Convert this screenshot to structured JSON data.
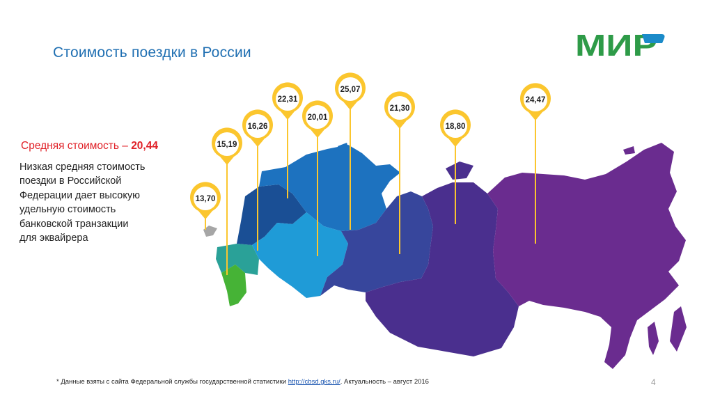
{
  "page": {
    "title": "Стоимость поездки в России",
    "page_number": "4"
  },
  "logo": {
    "text": "МИР",
    "color": "#2e9b48",
    "accent": "#1b8bc9"
  },
  "summary": {
    "label": "Средняя стоимость – ",
    "value": "20,44",
    "description": "Низкая средняя стоимость\nпоездки в Российской\nФедерации дает высокую\nудельную стоимость\nбанковской транзакции\nдля эквайрера"
  },
  "pins": [
    {
      "value": "13,70",
      "color": "#fbc62e"
    },
    {
      "value": "15,19",
      "color": "#fbc62e"
    },
    {
      "value": "16,26",
      "color": "#fbc62e"
    },
    {
      "value": "22,31",
      "color": "#fbc62e"
    },
    {
      "value": "20,01",
      "color": "#fbc62e"
    },
    {
      "value": "25,07",
      "color": "#fbc62e"
    },
    {
      "value": "21,30",
      "color": "#fbc62e"
    },
    {
      "value": "18,80",
      "color": "#fbc62e"
    },
    {
      "value": "24,47",
      "color": "#fbc62e"
    }
  ],
  "region_colors": {
    "crimea": "#a6a6a6",
    "south": "#2aa198",
    "north_caucasus": "#46b336",
    "central": "#1a4f95",
    "northwest": "#1d72bf",
    "volga": "#1f9bd7",
    "ural": "#37469c",
    "siberia": "#4a2f8e",
    "far_east": "#6a2c8f"
  },
  "footnote": {
    "text": "* Данные взяты с сайта Федеральной службы государственной статистики ",
    "link": "http://cbsd.gks.ru/",
    "suffix": ". Актуальность – август 2016"
  }
}
